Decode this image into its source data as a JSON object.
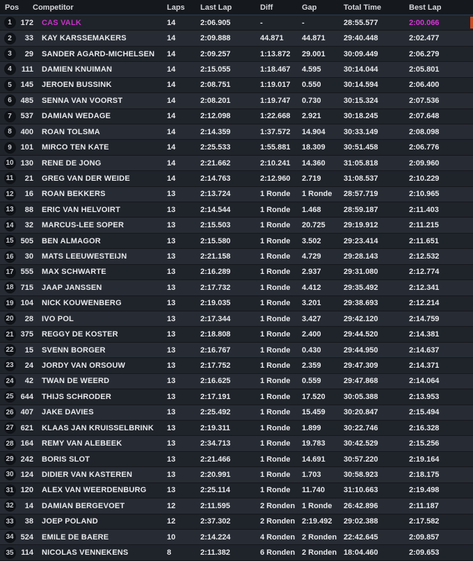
{
  "colors": {
    "highlight_name": "#c832c8",
    "highlight_best_lap": "#d834d8",
    "leader_marker": "#cc4a22"
  },
  "table": {
    "columns": [
      "Pos",
      "Competitor",
      "Laps",
      "Last Lap",
      "Diff",
      "Gap",
      "Total Time",
      "Best Lap"
    ],
    "rows": [
      {
        "pos": "1",
        "num": "172",
        "name": "CAS VALK",
        "laps": "14",
        "last_lap": "2:06.905",
        "diff": "-",
        "gap": "-",
        "total_time": "28:55.577",
        "best_lap": "2:00.066",
        "highlight": true
      },
      {
        "pos": "2",
        "num": "33",
        "name": "KAY KARSSEMAKERS",
        "laps": "14",
        "last_lap": "2:09.888",
        "diff": "44.871",
        "gap": "44.871",
        "total_time": "29:40.448",
        "best_lap": "2:02.477"
      },
      {
        "pos": "3",
        "num": "29",
        "name": "SANDER AGARD-MICHELSEN",
        "laps": "14",
        "last_lap": "2:09.257",
        "diff": "1:13.872",
        "gap": "29.001",
        "total_time": "30:09.449",
        "best_lap": "2:06.279"
      },
      {
        "pos": "4",
        "num": "111",
        "name": "DAMIEN KNUIMAN",
        "laps": "14",
        "last_lap": "2:15.055",
        "diff": "1:18.467",
        "gap": "4.595",
        "total_time": "30:14.044",
        "best_lap": "2:05.801"
      },
      {
        "pos": "5",
        "num": "145",
        "name": "JEROEN BUSSINK",
        "laps": "14",
        "last_lap": "2:08.751",
        "diff": "1:19.017",
        "gap": "0.550",
        "total_time": "30:14.594",
        "best_lap": "2:06.400"
      },
      {
        "pos": "6",
        "num": "485",
        "name": "SENNA VAN VOORST",
        "laps": "14",
        "last_lap": "2:08.201",
        "diff": "1:19.747",
        "gap": "0.730",
        "total_time": "30:15.324",
        "best_lap": "2:07.536"
      },
      {
        "pos": "7",
        "num": "537",
        "name": "DAMIAN WEDAGE",
        "laps": "14",
        "last_lap": "2:12.098",
        "diff": "1:22.668",
        "gap": "2.921",
        "total_time": "30:18.245",
        "best_lap": "2:07.648"
      },
      {
        "pos": "8",
        "num": "400",
        "name": "ROAN TOLSMA",
        "laps": "14",
        "last_lap": "2:14.359",
        "diff": "1:37.572",
        "gap": "14.904",
        "total_time": "30:33.149",
        "best_lap": "2:08.098"
      },
      {
        "pos": "9",
        "num": "101",
        "name": "MIRCO TEN KATE",
        "laps": "14",
        "last_lap": "2:25.533",
        "diff": "1:55.881",
        "gap": "18.309",
        "total_time": "30:51.458",
        "best_lap": "2:06.776"
      },
      {
        "pos": "10",
        "num": "130",
        "name": "RENE DE JONG",
        "laps": "14",
        "last_lap": "2:21.662",
        "diff": "2:10.241",
        "gap": "14.360",
        "total_time": "31:05.818",
        "best_lap": "2:09.960"
      },
      {
        "pos": "11",
        "num": "21",
        "name": "GREG VAN DER WEIDE",
        "laps": "14",
        "last_lap": "2:14.763",
        "diff": "2:12.960",
        "gap": "2.719",
        "total_time": "31:08.537",
        "best_lap": "2:10.229"
      },
      {
        "pos": "12",
        "num": "16",
        "name": "ROAN BEKKERS",
        "laps": "13",
        "last_lap": "2:13.724",
        "diff": "1 Ronde",
        "gap": "1 Ronde",
        "total_time": "28:57.719",
        "best_lap": "2:10.965"
      },
      {
        "pos": "13",
        "num": "88",
        "name": "ERIC VAN HELVOIRT",
        "laps": "13",
        "last_lap": "2:14.544",
        "diff": "1 Ronde",
        "gap": "1.468",
        "total_time": "28:59.187",
        "best_lap": "2:11.403"
      },
      {
        "pos": "14",
        "num": "32",
        "name": "MARCUS-LEE SOPER",
        "laps": "13",
        "last_lap": "2:15.503",
        "diff": "1 Ronde",
        "gap": "20.725",
        "total_time": "29:19.912",
        "best_lap": "2:11.215"
      },
      {
        "pos": "15",
        "num": "505",
        "name": "BEN ALMAGOR",
        "laps": "13",
        "last_lap": "2:15.580",
        "diff": "1 Ronde",
        "gap": "3.502",
        "total_time": "29:23.414",
        "best_lap": "2:11.651"
      },
      {
        "pos": "16",
        "num": "30",
        "name": "MATS LEEUWESTEIJN",
        "laps": "13",
        "last_lap": "2:21.158",
        "diff": "1 Ronde",
        "gap": "4.729",
        "total_time": "29:28.143",
        "best_lap": "2:12.532"
      },
      {
        "pos": "17",
        "num": "555",
        "name": "MAX SCHWARTE",
        "laps": "13",
        "last_lap": "2:16.289",
        "diff": "1 Ronde",
        "gap": "2.937",
        "total_time": "29:31.080",
        "best_lap": "2:12.774"
      },
      {
        "pos": "18",
        "num": "715",
        "name": "JAAP JANSSEN",
        "laps": "13",
        "last_lap": "2:17.732",
        "diff": "1 Ronde",
        "gap": "4.412",
        "total_time": "29:35.492",
        "best_lap": "2:12.341"
      },
      {
        "pos": "19",
        "num": "104",
        "name": "NICK KOUWENBERG",
        "laps": "13",
        "last_lap": "2:19.035",
        "diff": "1 Ronde",
        "gap": "3.201",
        "total_time": "29:38.693",
        "best_lap": "2:12.214"
      },
      {
        "pos": "20",
        "num": "28",
        "name": "IVO POL",
        "laps": "13",
        "last_lap": "2:17.344",
        "diff": "1 Ronde",
        "gap": "3.427",
        "total_time": "29:42.120",
        "best_lap": "2:14.759"
      },
      {
        "pos": "21",
        "num": "375",
        "name": "REGGY DE KOSTER",
        "laps": "13",
        "last_lap": "2:18.808",
        "diff": "1 Ronde",
        "gap": "2.400",
        "total_time": "29:44.520",
        "best_lap": "2:14.381"
      },
      {
        "pos": "22",
        "num": "15",
        "name": "SVENN BORGER",
        "laps": "13",
        "last_lap": "2:16.767",
        "diff": "1 Ronde",
        "gap": "0.430",
        "total_time": "29:44.950",
        "best_lap": "2:14.637"
      },
      {
        "pos": "23",
        "num": "24",
        "name": "JORDY VAN ORSOUW",
        "laps": "13",
        "last_lap": "2:17.752",
        "diff": "1 Ronde",
        "gap": "2.359",
        "total_time": "29:47.309",
        "best_lap": "2:14.371"
      },
      {
        "pos": "24",
        "num": "42",
        "name": "TWAN DE WEERD",
        "laps": "13",
        "last_lap": "2:16.625",
        "diff": "1 Ronde",
        "gap": "0.559",
        "total_time": "29:47.868",
        "best_lap": "2:14.064"
      },
      {
        "pos": "25",
        "num": "644",
        "name": "THIJS SCHRODER",
        "laps": "13",
        "last_lap": "2:17.191",
        "diff": "1 Ronde",
        "gap": "17.520",
        "total_time": "30:05.388",
        "best_lap": "2:13.953"
      },
      {
        "pos": "26",
        "num": "407",
        "name": "JAKE DAVIES",
        "laps": "13",
        "last_lap": "2:25.492",
        "diff": "1 Ronde",
        "gap": "15.459",
        "total_time": "30:20.847",
        "best_lap": "2:15.494"
      },
      {
        "pos": "27",
        "num": "621",
        "name": "KLAAS JAN KRUISSELBRINK",
        "laps": "13",
        "last_lap": "2:19.311",
        "diff": "1 Ronde",
        "gap": "1.899",
        "total_time": "30:22.746",
        "best_lap": "2:16.328"
      },
      {
        "pos": "28",
        "num": "164",
        "name": "REMY VAN ALEBEEK",
        "laps": "13",
        "last_lap": "2:34.713",
        "diff": "1 Ronde",
        "gap": "19.783",
        "total_time": "30:42.529",
        "best_lap": "2:15.256"
      },
      {
        "pos": "29",
        "num": "242",
        "name": "BORIS SLOT",
        "laps": "13",
        "last_lap": "2:21.466",
        "diff": "1 Ronde",
        "gap": "14.691",
        "total_time": "30:57.220",
        "best_lap": "2:19.164"
      },
      {
        "pos": "30",
        "num": "124",
        "name": "DIDIER VAN KASTEREN",
        "laps": "13",
        "last_lap": "2:20.991",
        "diff": "1 Ronde",
        "gap": "1.703",
        "total_time": "30:58.923",
        "best_lap": "2:18.175"
      },
      {
        "pos": "31",
        "num": "120",
        "name": "ALEX VAN WEERDENBURG",
        "laps": "13",
        "last_lap": "2:25.114",
        "diff": "1 Ronde",
        "gap": "11.740",
        "total_time": "31:10.663",
        "best_lap": "2:19.498"
      },
      {
        "pos": "32",
        "num": "14",
        "name": "DAMIAN BERGEVOET",
        "laps": "12",
        "last_lap": "2:11.595",
        "diff": "2 Ronden",
        "gap": "1 Ronde",
        "total_time": "26:42.896",
        "best_lap": "2:11.187"
      },
      {
        "pos": "33",
        "num": "38",
        "name": "JOEP POLAND",
        "laps": "12",
        "last_lap": "2:37.302",
        "diff": "2 Ronden",
        "gap": "2:19.492",
        "total_time": "29:02.388",
        "best_lap": "2:17.582"
      },
      {
        "pos": "34",
        "num": "524",
        "name": "EMILE DE BAERE",
        "laps": "10",
        "last_lap": "2:14.224",
        "diff": "4 Ronden",
        "gap": "2 Ronden",
        "total_time": "22:42.645",
        "best_lap": "2:09.857"
      },
      {
        "pos": "35",
        "num": "114",
        "name": "NICOLAS VENNEKENS",
        "laps": "8",
        "last_lap": "2:11.382",
        "diff": "6 Ronden",
        "gap": "2 Ronden",
        "total_time": "18:04.460",
        "best_lap": "2:09.653"
      }
    ]
  }
}
